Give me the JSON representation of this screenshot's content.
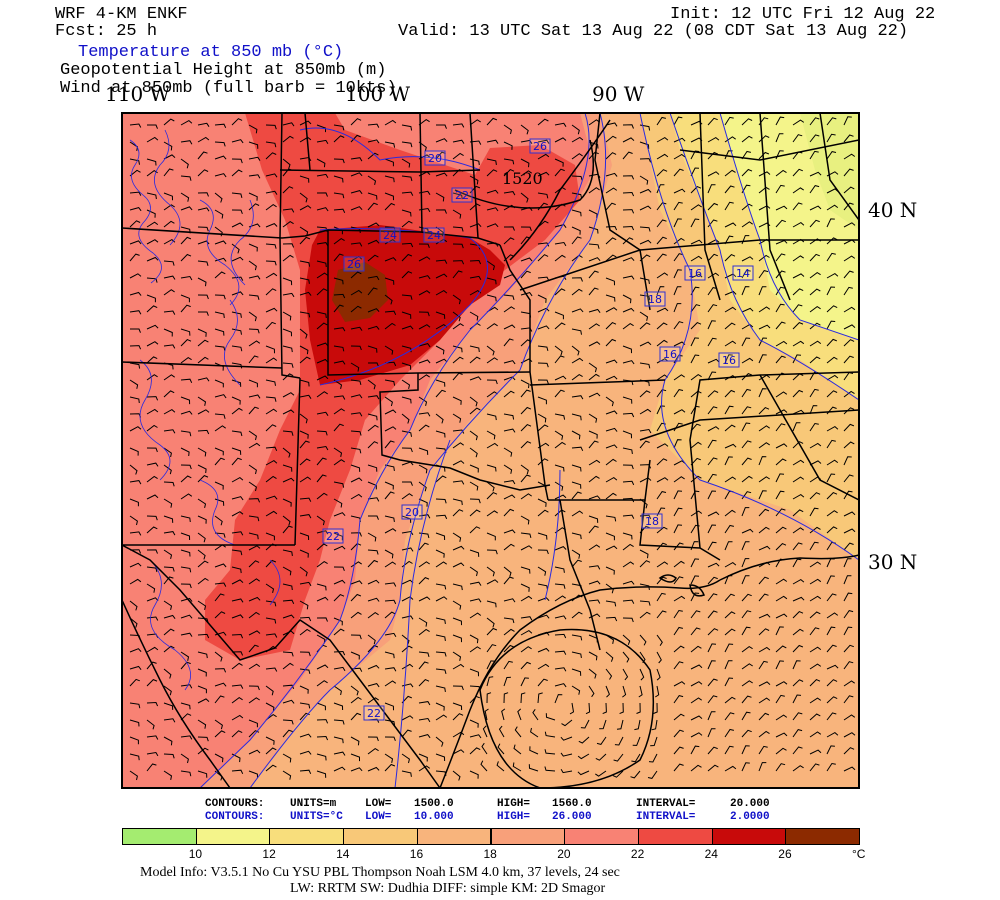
{
  "header": {
    "model": "WRF 4-KM ENKF",
    "forecast": "Fcst:   25 h",
    "init": "Init: 12 UTC Fri 12 Aug 22",
    "valid": "Valid: 13 UTC Sat 13 Aug 22 (08 CDT Sat 13 Aug 22)",
    "field1": "Temperature at 850 mb (°C)",
    "field2": "Geopotential Height at 850mb (m)",
    "field3": "Wind at 850mb (full barb = 10kts)"
  },
  "axes": {
    "lon_labels": [
      "110 W",
      "100 W",
      "90 W"
    ],
    "lat_labels": [
      "40 N",
      "30 N"
    ]
  },
  "map_labels": {
    "height_contour": "1520",
    "temperature_contours": [
      "20",
      "26",
      "22",
      "24",
      "24",
      "26",
      "16",
      "14",
      "18",
      "16",
      "16",
      "20",
      "18",
      "22",
      "22"
    ]
  },
  "contour_info": {
    "line1_label": "CONTOURS:",
    "line1_units": "UNITS=m",
    "line1_low_label": "LOW=",
    "line1_low": "1500.0",
    "line1_high_label": "HIGH=",
    "line1_high": "1560.0",
    "line1_interval_label": "INTERVAL=",
    "line1_interval": "20.000",
    "line2_label": "CONTOURS:",
    "line2_units": "UNITS=°C",
    "line2_low_label": "LOW=",
    "line2_low": "10.000",
    "line2_high_label": "HIGH=",
    "line2_high": "26.000",
    "line2_interval_label": "INTERVAL=",
    "line2_interval": "2.0000"
  },
  "colorbar": {
    "colors": [
      "#a4ec70",
      "#f4f48a",
      "#f8de7c",
      "#f8c878",
      "#f8b47c",
      "#f8a07a",
      "#f88274",
      "#ee4a42",
      "#c80a0a",
      "#8c2a00"
    ],
    "ticks": [
      "10",
      "12",
      "14",
      "16",
      "18",
      "20",
      "22",
      "24",
      "26"
    ],
    "unit": "°C"
  },
  "footer": {
    "line1": "Model Info: V3.5.1    No Cu    YSU PBL   Thompson      Noah LSM   4.0 km,   37 levels,     24 sec",
    "line2": "LW: RRTM  SW: Dudhia   DIFF: simple  KM: 2D Smagor"
  }
}
